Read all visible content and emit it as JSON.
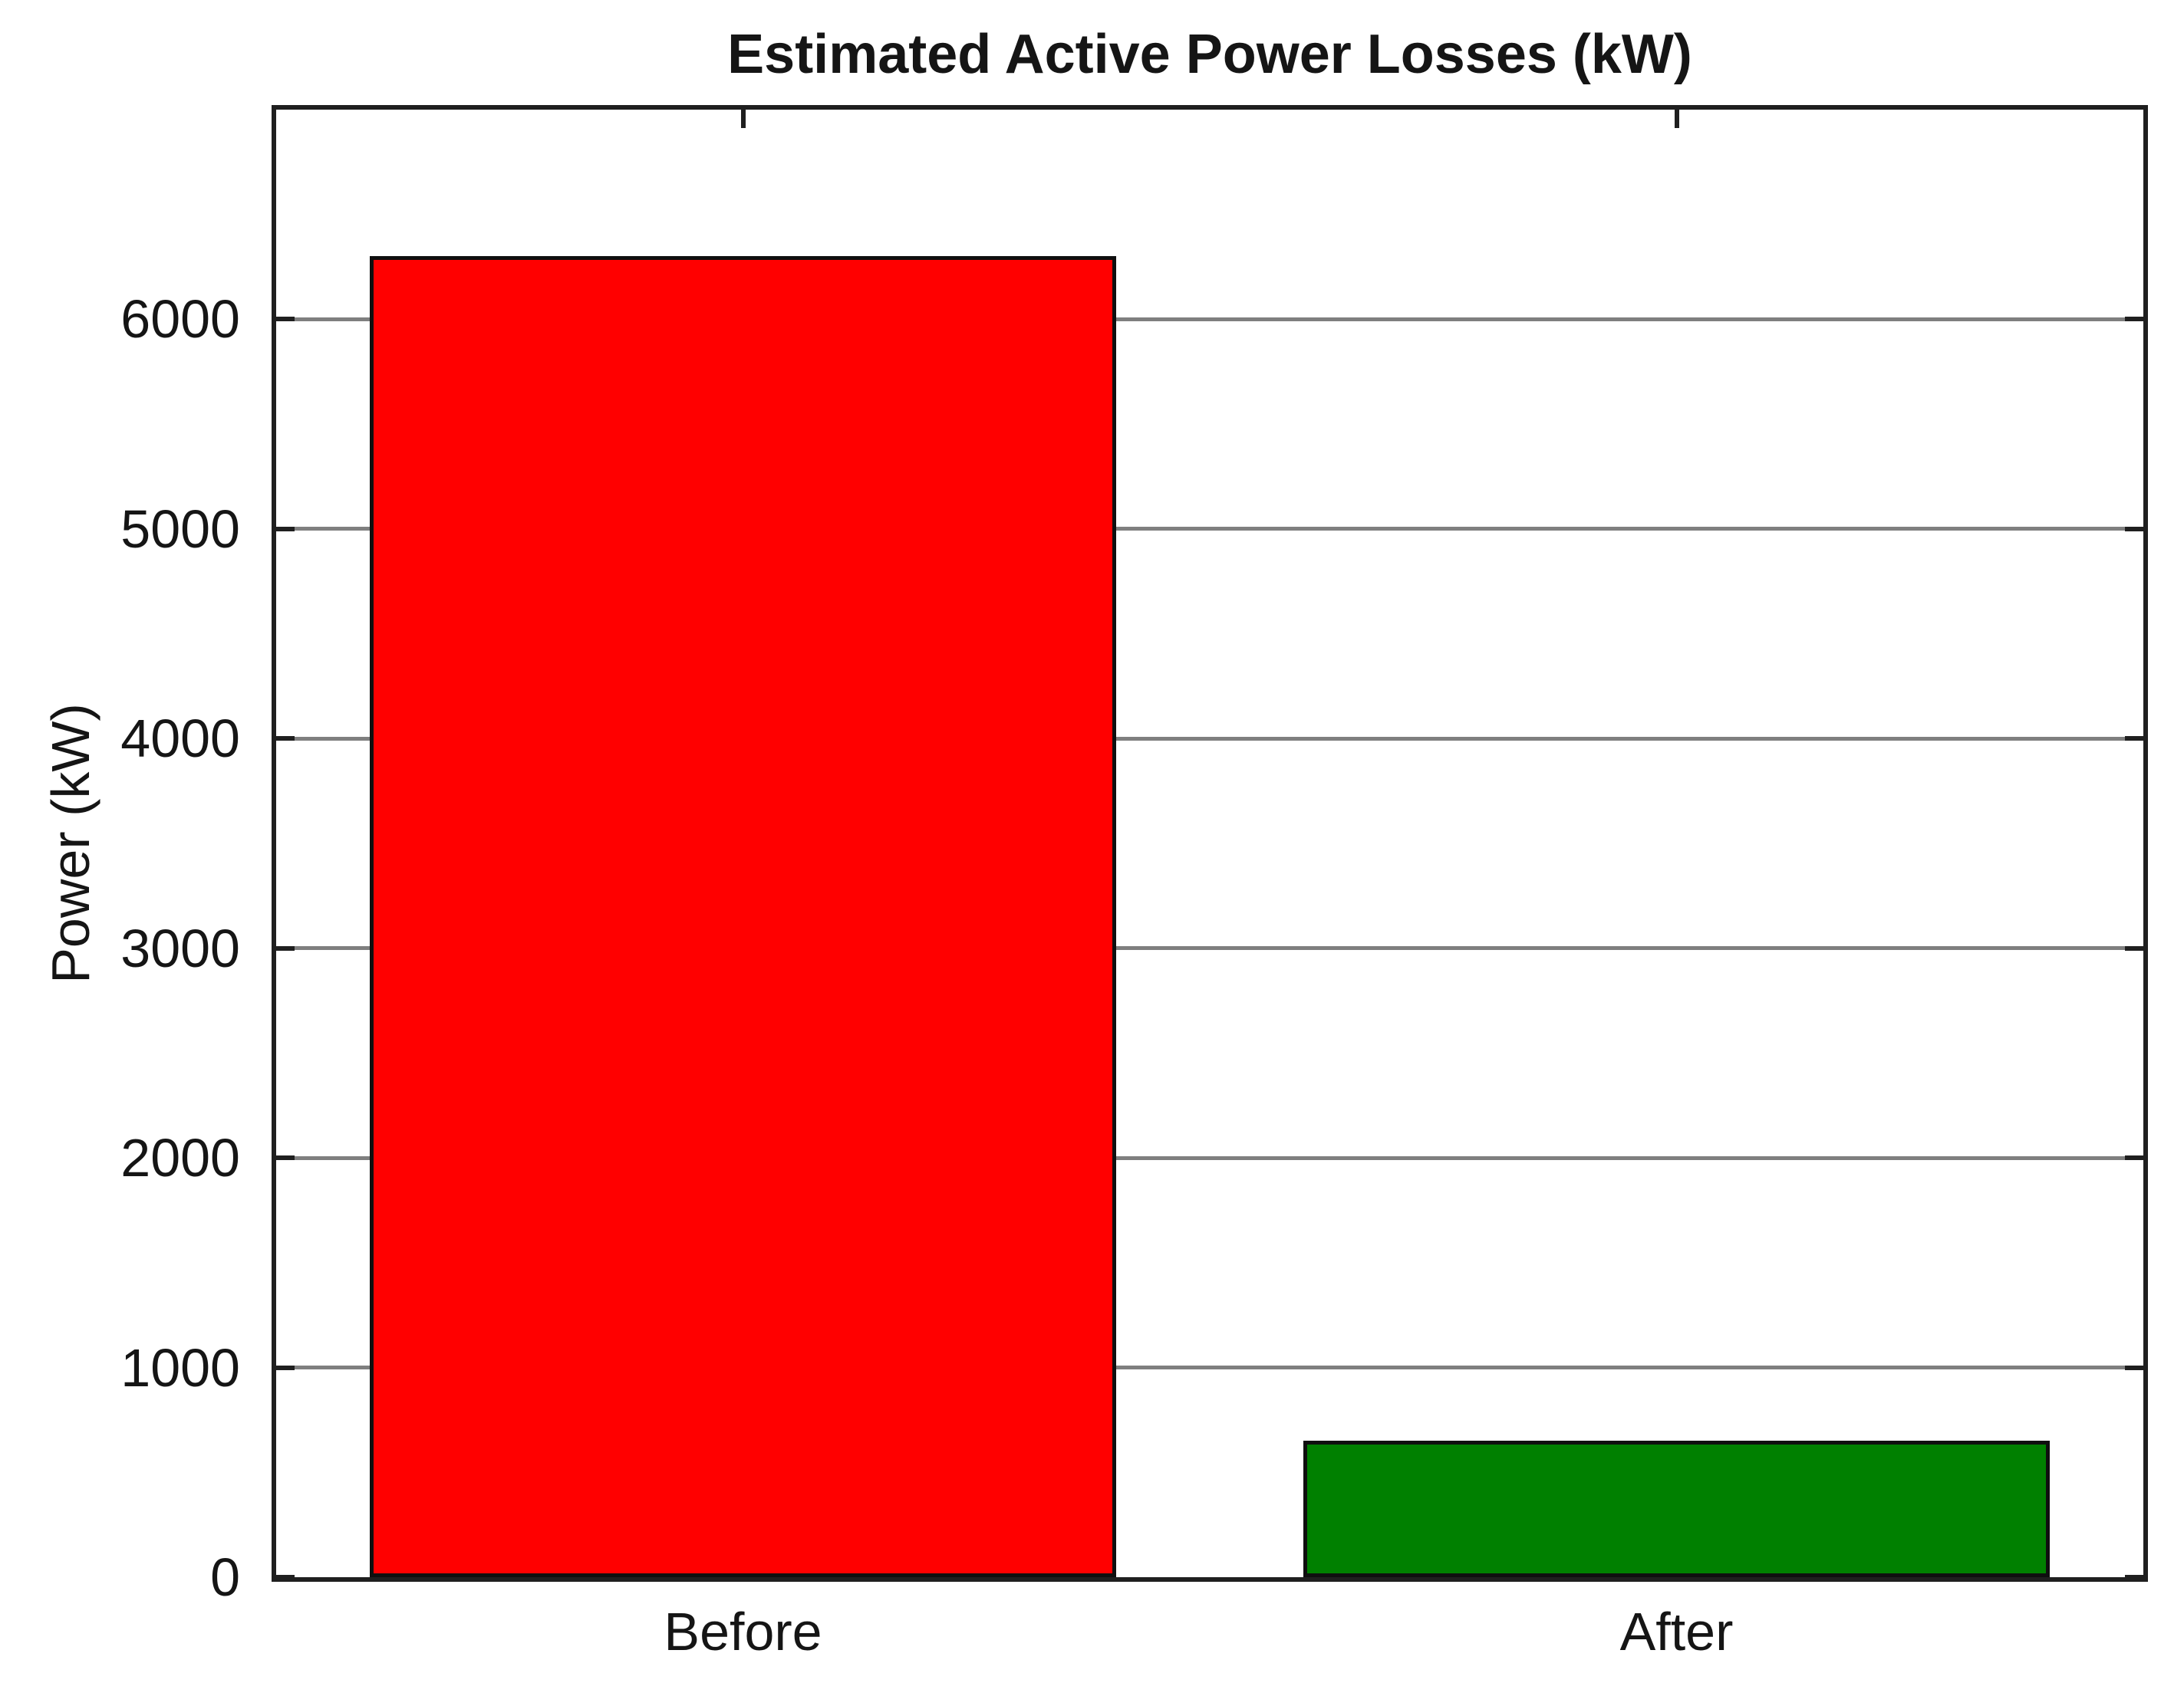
{
  "figure": {
    "background": "#ffffff"
  },
  "chart_data": {
    "type": "bar",
    "title": "Estimated Active Power Losses (kW)",
    "categories": [
      "Before",
      "After"
    ],
    "values": [
      6300,
      650
    ],
    "bar_colors": [
      "#ff0000",
      "#008000"
    ],
    "xlabel": "",
    "ylabel": "Power (kW)",
    "ylim": [
      0,
      7000
    ],
    "yticks": [
      0,
      1000,
      2000,
      3000,
      4000,
      5000,
      6000
    ],
    "grid": "horizontal-gridlines-on",
    "grid_color": "#7f7f7f",
    "axis_color": "#1f1f1f",
    "bar_edge_color": "#0f0f0f",
    "bar_width_fraction": 0.8,
    "legend_position": "none"
  }
}
